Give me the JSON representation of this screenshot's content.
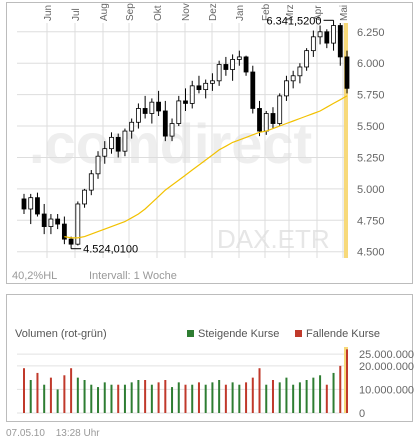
{
  "price_chart": {
    "watermark_text": ".comdirect",
    "watermark_right": "DAX.ETR",
    "footer_left": "40,2%HL",
    "footer_right": "Intervall: 1 Woche",
    "high_label": "6.341,5200",
    "low_label": "4.524,0100",
    "colors": {
      "up": "#000000",
      "down": "#000000",
      "ma": "#f2c100",
      "grid": "#dddddd",
      "highlight": "#f7d97a"
    }
  },
  "volume_chart": {
    "title": "Volumen (rot-grün)",
    "legend": [
      {
        "label": "Steigende Kurse",
        "color": "#2e7d32"
      },
      {
        "label": "Fallende Kurse",
        "color": "#c0392b"
      }
    ]
  },
  "footer": {
    "date": "07.05.10",
    "time": "13:28 Uhr"
  },
  "chart_data": [
    {
      "type": "candlestick",
      "title": "DAX.ETR",
      "x_ticks": [
        "Jun",
        "Jul",
        "Aug",
        "Sep",
        "Okt",
        "Nov",
        "Dez",
        "Jan",
        "Feb",
        "Mrz",
        "Apr",
        "Mai"
      ],
      "y_ticks": [
        "6.250",
        "6.000",
        "5.750",
        "5.500",
        "5.250",
        "5.000",
        "4.750",
        "4.500"
      ],
      "ylim": [
        4450,
        6320
      ],
      "annotations": [
        {
          "text": "6.341,5200",
          "value": 6341.52
        },
        {
          "text": "4.524,0100",
          "value": 4524.01
        }
      ],
      "series": [
        {
          "name": "DAX",
          "ohlc": [
            [
              4920,
              4960,
              4800,
              4840
            ],
            [
              4840,
              4960,
              4720,
              4930
            ],
            [
              4930,
              4970,
              4780,
              4800
            ],
            [
              4800,
              4880,
              4640,
              4700
            ],
            [
              4700,
              4800,
              4640,
              4760
            ],
            [
              4760,
              4800,
              4680,
              4720
            ],
            [
              4720,
              4780,
              4560,
              4600
            ],
            [
              4600,
              4620,
              4524,
              4560
            ],
            [
              4560,
              4900,
              4550,
              4880
            ],
            [
              4880,
              5000,
              4850,
              4990
            ],
            [
              4990,
              5150,
              4950,
              5120
            ],
            [
              5120,
              5300,
              5080,
              5260
            ],
            [
              5260,
              5380,
              5200,
              5320
            ],
            [
              5320,
              5450,
              5280,
              5410
            ],
            [
              5410,
              5440,
              5250,
              5300
            ],
            [
              5300,
              5480,
              5260,
              5460
            ],
            [
              5460,
              5560,
              5400,
              5530
            ],
            [
              5530,
              5680,
              5480,
              5640
            ],
            [
              5640,
              5740,
              5560,
              5600
            ],
            [
              5600,
              5720,
              5520,
              5690
            ],
            [
              5690,
              5780,
              5580,
              5620
            ],
            [
              5620,
              5700,
              5380,
              5420
            ],
            [
              5420,
              5560,
              5380,
              5520
            ],
            [
              5520,
              5740,
              5500,
              5700
            ],
            [
              5700,
              5800,
              5620,
              5680
            ],
            [
              5680,
              5860,
              5640,
              5820
            ],
            [
              5820,
              5900,
              5760,
              5790
            ],
            [
              5790,
              5870,
              5720,
              5840
            ],
            [
              5840,
              5920,
              5780,
              5860
            ],
            [
              5860,
              6020,
              5820,
              5990
            ],
            [
              5990,
              6050,
              5900,
              5950
            ],
            [
              5950,
              6070,
              5860,
              6030
            ],
            [
              6030,
              6100,
              5980,
              6050
            ],
            [
              6050,
              6060,
              5900,
              5930
            ],
            [
              5930,
              5980,
              5600,
              5640
            ],
            [
              5640,
              5700,
              5420,
              5460
            ],
            [
              5460,
              5620,
              5430,
              5600
            ],
            [
              5600,
              5650,
              5480,
              5520
            ],
            [
              5520,
              5760,
              5500,
              5740
            ],
            [
              5740,
              5900,
              5700,
              5860
            ],
            [
              5860,
              5940,
              5800,
              5900
            ],
            [
              5900,
              6000,
              5840,
              5970
            ],
            [
              5970,
              6120,
              5940,
              6100
            ],
            [
              6100,
              6260,
              6050,
              6210
            ],
            [
              6210,
              6300,
              6150,
              6250
            ],
            [
              6250,
              6270,
              6120,
              6160
            ],
            [
              6160,
              6341.52,
              6100,
              6300
            ],
            [
              6300,
              6320,
              5980,
              6050
            ],
            [
              6050,
              6100,
              5760,
              5800
            ]
          ]
        },
        {
          "name": "MA",
          "values": [
            4620,
            4610,
            4610,
            4620,
            4640,
            4660,
            4680,
            4700,
            4720,
            4740,
            4770,
            4800,
            4840,
            4890,
            4940,
            4990,
            5030,
            5070,
            5110,
            5150,
            5190,
            5230,
            5270,
            5310,
            5340,
            5370,
            5390,
            5410,
            5430,
            5450,
            5460,
            5480,
            5500,
            5520,
            5540,
            5560,
            5580,
            5600,
            5620,
            5650,
            5680,
            5710,
            5740
          ]
        }
      ]
    },
    {
      "type": "bar",
      "title": "Volumen (rot-grün)",
      "y_ticks": [
        "25.000.000",
        "20.000.000",
        "10.000.000",
        "0"
      ],
      "ylim": [
        0,
        28000000
      ],
      "series": [
        {
          "name": "Steigende Kurse",
          "values": [
            0,
            14000000,
            0,
            12000000,
            0,
            10000000,
            0,
            0,
            15000000,
            14000000,
            12000000,
            11000000,
            13000000,
            12000000,
            0,
            12000000,
            13000000,
            14000000,
            0,
            12000000,
            0,
            0,
            11000000,
            13000000,
            0,
            12000000,
            0,
            12000000,
            13000000,
            14000000,
            0,
            13000000,
            12000000,
            0,
            0,
            0,
            12000000,
            0,
            13000000,
            15000000,
            12000000,
            13000000,
            14000000,
            15000000,
            16000000,
            0,
            17000000,
            0,
            0
          ]
        },
        {
          "name": "Fallende Kurse",
          "values": [
            19000000,
            0,
            17000000,
            0,
            15000000,
            0,
            16000000,
            19000000,
            0,
            0,
            0,
            0,
            0,
            0,
            12000000,
            0,
            0,
            0,
            14000000,
            0,
            13000000,
            14000000,
            0,
            0,
            12000000,
            0,
            13000000,
            0,
            0,
            0,
            12000000,
            0,
            0,
            13000000,
            15000000,
            19000000,
            0,
            14000000,
            0,
            0,
            0,
            0,
            0,
            0,
            0,
            12000000,
            0,
            20000000,
            27000000
          ]
        }
      ]
    }
  ]
}
